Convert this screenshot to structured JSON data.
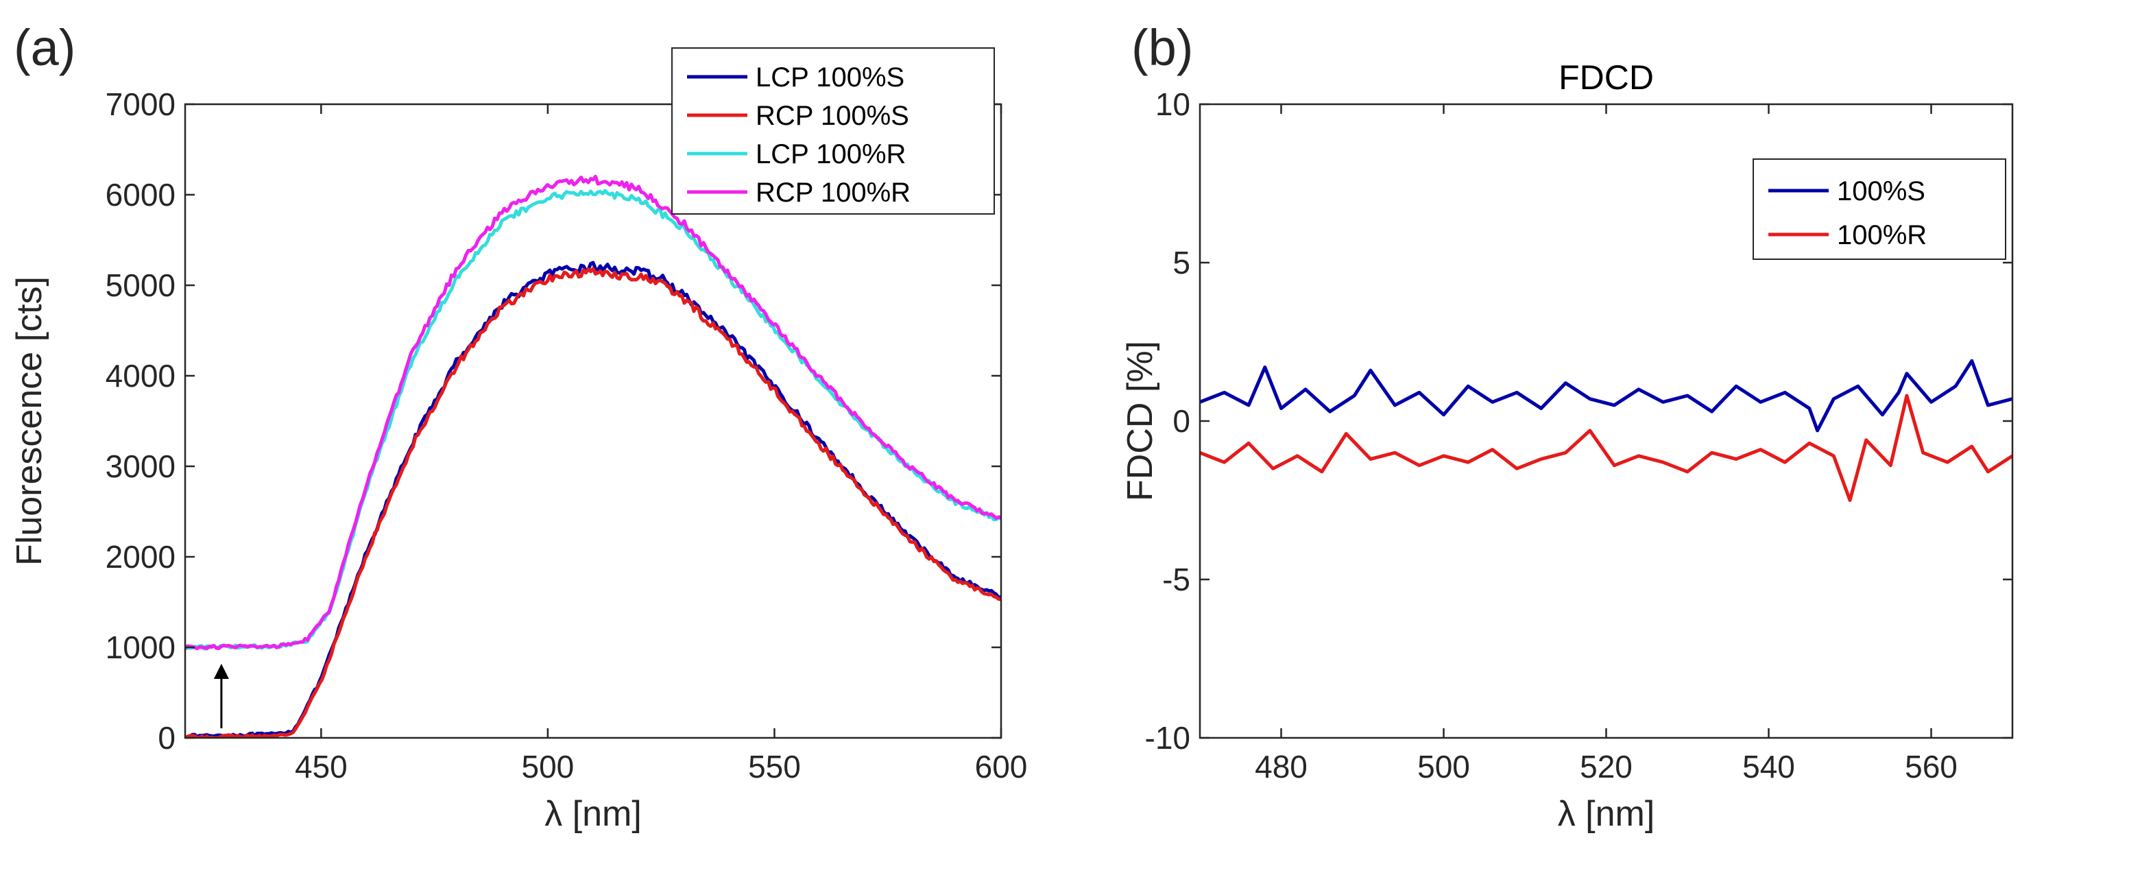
{
  "colors": {
    "blue": "#0000aa",
    "red": "#e51b1b",
    "cyan": "#33dddd",
    "magenta": "#ee22ee",
    "axis": "#262626"
  },
  "chart_data": [
    {
      "type": "line",
      "panel_label": "(a)",
      "title": "",
      "xlabel": "λ [nm]",
      "ylabel": "Fluorescence [cts]",
      "xlim": [
        420,
        600
      ],
      "ylim": [
        0,
        7000
      ],
      "xticks": [
        450,
        500,
        550,
        600
      ],
      "yticks": [
        0,
        1000,
        2000,
        3000,
        4000,
        5000,
        6000,
        7000
      ],
      "grid": false,
      "legend": "top-right",
      "annotation": "upward arrow at λ≈428 nm pointing from 0 to 1000 cts",
      "series": [
        {
          "name": "LCP 100%S",
          "color": "#0000aa",
          "x": [
            420,
            440,
            444,
            450,
            460,
            470,
            480,
            490,
            500,
            510,
            520,
            525,
            530,
            540,
            550,
            560,
            570,
            580,
            590,
            600
          ],
          "y": [
            20,
            40,
            80,
            650,
            2050,
            3250,
            4170,
            4800,
            5130,
            5210,
            5150,
            5080,
            4890,
            4440,
            3880,
            3280,
            2720,
            2210,
            1770,
            1560
          ]
        },
        {
          "name": "RCP 100%S",
          "color": "#e51b1b",
          "x": [
            420,
            440,
            444,
            450,
            460,
            470,
            480,
            490,
            500,
            510,
            520,
            525,
            530,
            540,
            550,
            560,
            570,
            580,
            590,
            600
          ],
          "y": [
            10,
            20,
            60,
            620,
            2020,
            3220,
            4130,
            4760,
            5080,
            5150,
            5090,
            5030,
            4840,
            4400,
            3840,
            3240,
            2690,
            2180,
            1740,
            1540
          ]
        },
        {
          "name": "LCP 100%R",
          "color": "#33dddd",
          "x": [
            420,
            440,
            447,
            452,
            460,
            470,
            480,
            490,
            500,
            510,
            520,
            530,
            540,
            550,
            560,
            570,
            580,
            590,
            600
          ],
          "y": [
            1000,
            1010,
            1080,
            1400,
            2750,
            4170,
            5100,
            5700,
            5970,
            6040,
            5960,
            5620,
            5080,
            4520,
            3950,
            3420,
            2970,
            2600,
            2400
          ]
        },
        {
          "name": "RCP 100%R",
          "color": "#ee22ee",
          "x": [
            420,
            440,
            447,
            452,
            460,
            470,
            480,
            490,
            500,
            510,
            520,
            530,
            540,
            550,
            560,
            570,
            580,
            590,
            600
          ],
          "y": [
            1000,
            1010,
            1090,
            1420,
            2800,
            4250,
            5200,
            5820,
            6110,
            6170,
            6070,
            5680,
            5120,
            4560,
            3980,
            3450,
            2990,
            2620,
            2420
          ]
        }
      ]
    },
    {
      "type": "line",
      "panel_label": "(b)",
      "title": "FDCD",
      "xlabel": "λ [nm]",
      "ylabel": "FDCD [%]",
      "xlim": [
        470,
        570
      ],
      "ylim": [
        -10,
        10
      ],
      "xticks": [
        480,
        500,
        520,
        540,
        560
      ],
      "yticks": [
        -10,
        -5,
        0,
        5,
        10
      ],
      "grid": false,
      "legend": "top-right",
      "series": [
        {
          "name": "100%S",
          "color": "#0000aa",
          "x": [
            470,
            473,
            476,
            478,
            480,
            483,
            486,
            489,
            491,
            494,
            497,
            500,
            503,
            506,
            509,
            512,
            515,
            518,
            521,
            524,
            527,
            530,
            533,
            536,
            539,
            542,
            545,
            546,
            548,
            551,
            554,
            556,
            557,
            560,
            563,
            565,
            567,
            570
          ],
          "y": [
            0.6,
            0.9,
            0.5,
            1.7,
            0.4,
            1.0,
            0.3,
            0.8,
            1.6,
            0.5,
            0.9,
            0.2,
            1.1,
            0.6,
            0.9,
            0.4,
            1.2,
            0.7,
            0.5,
            1.0,
            0.6,
            0.8,
            0.3,
            1.1,
            0.6,
            0.9,
            0.4,
            -0.3,
            0.7,
            1.1,
            0.2,
            0.9,
            1.5,
            0.6,
            1.1,
            1.9,
            0.5,
            0.7
          ]
        },
        {
          "name": "100%R",
          "color": "#e51b1b",
          "x": [
            470,
            473,
            476,
            479,
            482,
            485,
            488,
            491,
            494,
            497,
            500,
            503,
            506,
            509,
            512,
            515,
            518,
            521,
            524,
            527,
            530,
            533,
            536,
            539,
            542,
            545,
            548,
            550,
            552,
            555,
            557,
            559,
            562,
            565,
            567,
            570
          ],
          "y": [
            -1.0,
            -1.3,
            -0.7,
            -1.5,
            -1.1,
            -1.6,
            -0.4,
            -1.2,
            -1.0,
            -1.4,
            -1.1,
            -1.3,
            -0.9,
            -1.5,
            -1.2,
            -1.0,
            -0.3,
            -1.4,
            -1.1,
            -1.3,
            -1.6,
            -1.0,
            -1.2,
            -0.9,
            -1.3,
            -0.7,
            -1.1,
            -2.5,
            -0.6,
            -1.4,
            0.8,
            -1.0,
            -1.3,
            -0.8,
            -1.6,
            -1.1
          ]
        }
      ]
    }
  ]
}
